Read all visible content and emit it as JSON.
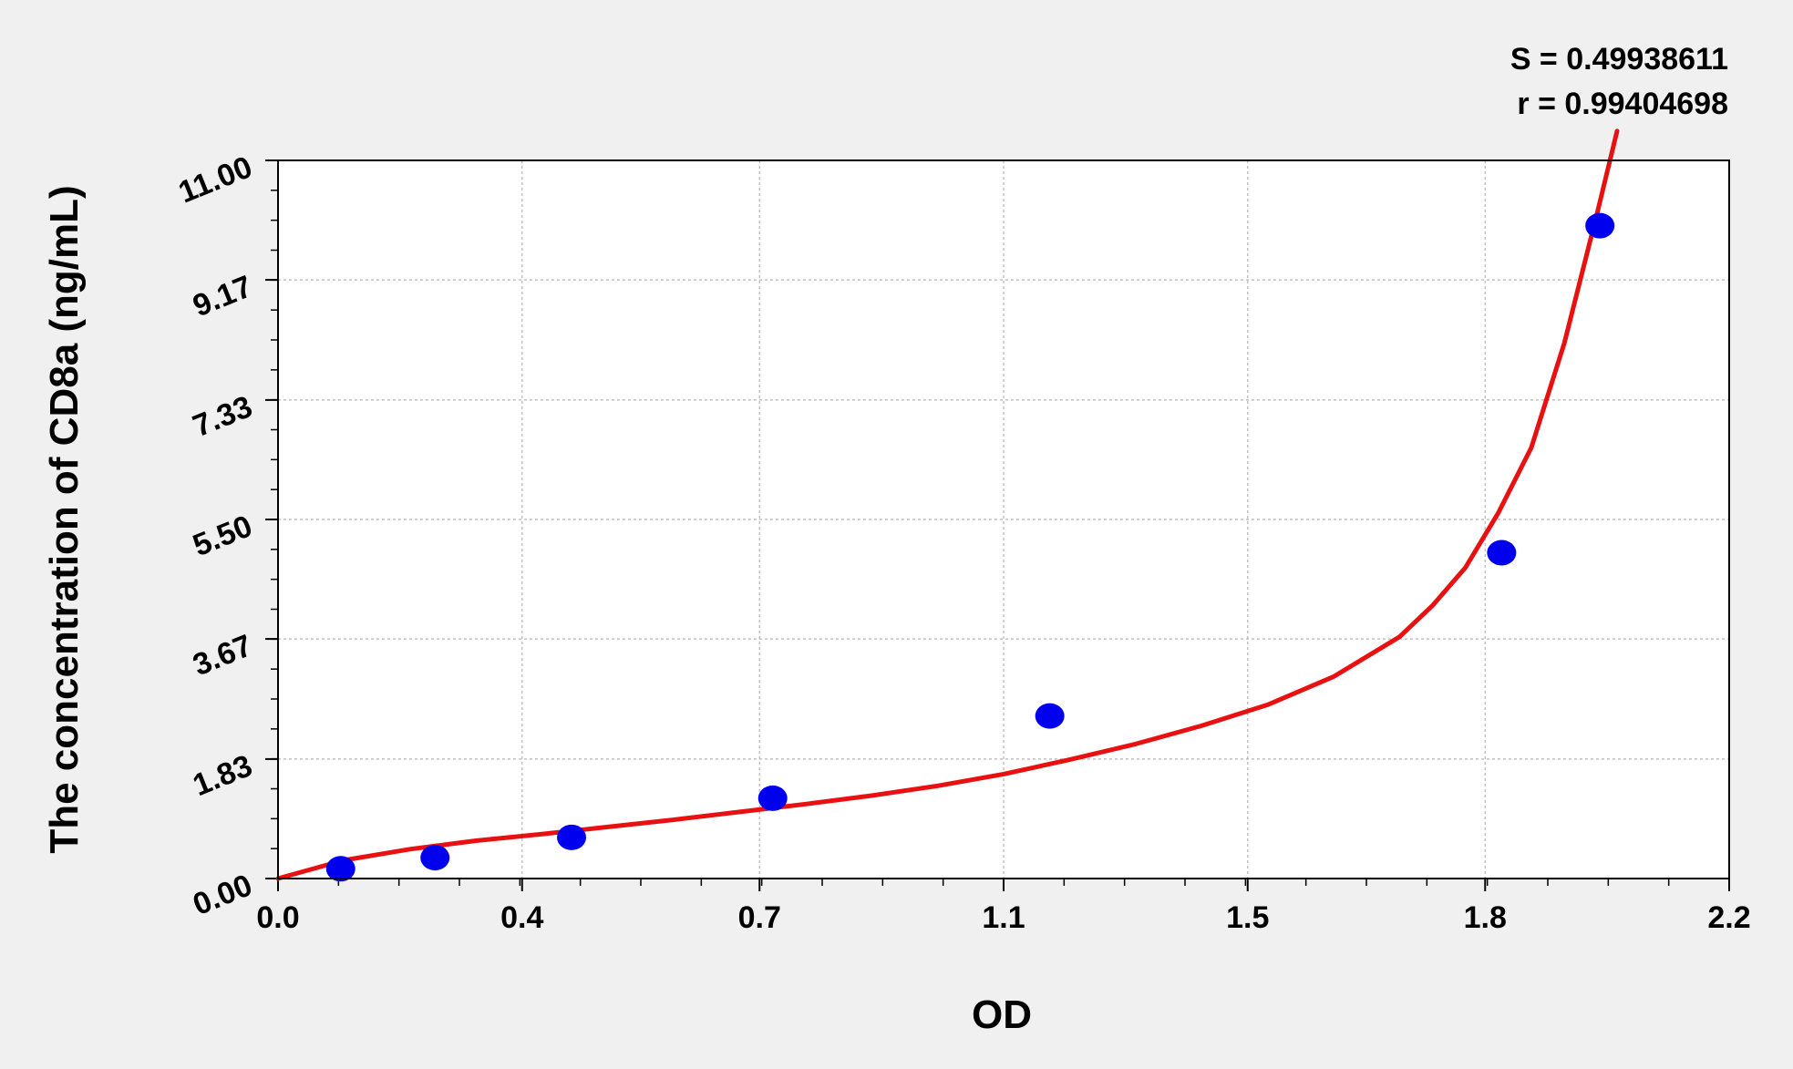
{
  "chart_data": {
    "type": "scatter",
    "xlabel": "OD",
    "ylabel": "The concentration of CD8a (ng/mL)",
    "annotations": [
      "S = 0.49938611",
      "r = 0.99404698"
    ],
    "xlim": [
      0,
      2.2
    ],
    "ylim": [
      0,
      11
    ],
    "x_ticks": [
      0.0,
      0.37,
      0.73,
      1.1,
      1.47,
      1.83,
      2.2
    ],
    "x_tick_labels": [
      "0.0",
      "0.4",
      "0.7",
      "1.1",
      "1.5",
      "1.8",
      "2.2"
    ],
    "y_ticks": [
      0,
      1.83,
      3.67,
      5.5,
      7.33,
      9.17,
      11
    ],
    "y_tick_labels": [
      "0.00",
      "1.83",
      "3.67",
      "5.50",
      "7.33",
      "9.17",
      "11.00"
    ],
    "grid": true,
    "series": [
      {
        "kind": "points",
        "color": "#0000ee",
        "x": [
          0.095,
          0.238,
          0.445,
          0.75,
          1.17,
          1.855,
          2.004
        ],
        "y": [
          0.15,
          0.32,
          0.63,
          1.23,
          2.49,
          4.99,
          10.0
        ]
      },
      {
        "kind": "fit-curve",
        "color": "#e81010",
        "x": [
          0.0,
          0.1,
          0.2,
          0.3,
          0.4,
          0.5,
          0.6,
          0.7,
          0.8,
          0.9,
          1.0,
          1.1,
          1.2,
          1.3,
          1.4,
          1.5,
          1.6,
          1.7,
          1.75,
          1.8,
          1.85,
          1.9,
          1.95,
          2.0,
          2.03
        ],
        "y": [
          0.0,
          0.28,
          0.45,
          0.58,
          0.68,
          0.79,
          0.9,
          1.02,
          1.14,
          1.27,
          1.42,
          1.6,
          1.82,
          2.06,
          2.34,
          2.66,
          3.09,
          3.7,
          4.18,
          4.76,
          5.6,
          6.6,
          8.2,
          10.2,
          11.45
        ]
      }
    ]
  }
}
